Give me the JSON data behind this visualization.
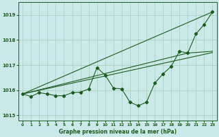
{
  "title": "Graphe pression niveau de la mer (hPa)",
  "bg_color": "#cbe9e9",
  "grid_color": "#a0ccbb",
  "line_color": "#1a5c1a",
  "xlim": [
    -0.5,
    23.5
  ],
  "ylim": [
    1014.8,
    1019.5
  ],
  "yticks": [
    1015,
    1016,
    1017,
    1018,
    1019
  ],
  "xticks": [
    0,
    1,
    2,
    3,
    4,
    5,
    6,
    7,
    8,
    9,
    10,
    11,
    12,
    13,
    14,
    15,
    16,
    17,
    18,
    19,
    20,
    21,
    22,
    23
  ],
  "main_series": [
    1015.85,
    1015.75,
    1015.9,
    1015.85,
    1015.78,
    1015.78,
    1015.9,
    1015.92,
    1016.05,
    1016.9,
    1016.6,
    1016.08,
    1016.05,
    1015.52,
    1015.38,
    1015.52,
    1016.28,
    1016.65,
    1016.95,
    1017.55,
    1017.48,
    1018.25,
    1018.62,
    1019.12
  ],
  "line1_x": [
    0,
    23
  ],
  "line1_y": [
    1015.85,
    1019.12
  ],
  "line2_x": [
    0,
    23
  ],
  "line2_y": [
    1015.85,
    1017.5
  ],
  "line3_x": [
    0,
    20,
    23
  ],
  "line3_y": [
    1015.85,
    1017.48,
    1017.55
  ]
}
